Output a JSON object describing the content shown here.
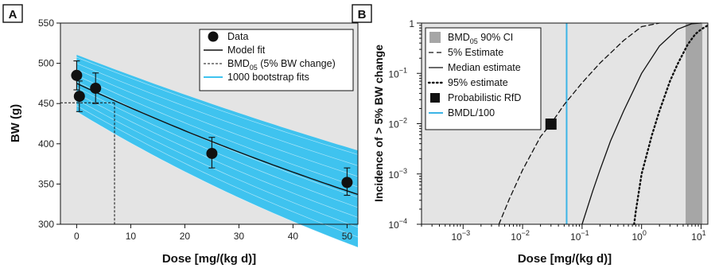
{
  "chart_data": [
    {
      "panel": "A",
      "type": "scatter",
      "xlabel": "Dose [mg/(kg d)]",
      "ylabel": "BW (g)",
      "xlim": [
        -3,
        52
      ],
      "ylim": [
        300,
        550
      ],
      "x_ticks": [
        0,
        10,
        20,
        30,
        40,
        50
      ],
      "y_ticks": [
        300,
        350,
        400,
        450,
        500,
        550
      ],
      "legend_position": "top-right",
      "legend": [
        {
          "label": "Data",
          "marker": "filled-circle"
        },
        {
          "label": "Model fit",
          "style": "solid-black"
        },
        {
          "label": "BMD",
          "sub": "05",
          "suffix": " (5% BW change)",
          "style": "dashed-black"
        },
        {
          "label": "1000 bootstrap fits",
          "style": "solid-cyan"
        }
      ],
      "data_points": [
        {
          "x": 0,
          "y": 485,
          "err_low": 467,
          "err_high": 503
        },
        {
          "x": 0.5,
          "y": 459,
          "err_low": 440,
          "err_high": 478
        },
        {
          "x": 3.5,
          "y": 469,
          "err_low": 450,
          "err_high": 488
        },
        {
          "x": 25,
          "y": 388,
          "err_low": 370,
          "err_high": 408
        },
        {
          "x": 50,
          "y": 352,
          "err_low": 336,
          "err_high": 370
        }
      ],
      "model_fit": {
        "y0": 475,
        "b": 0.0066
      },
      "bootstrap_band": {
        "upper_y0": 510,
        "upper_b": 0.0051,
        "lower_y0": 440,
        "lower_b": 0.0093
      },
      "bmd05": {
        "x": 7,
        "y": 451
      }
    },
    {
      "panel": "B",
      "type": "line",
      "xlabel": "Dose [mg/(kg d)]",
      "ylabel": "Incidence of > 5% BW change",
      "x_scale": "log",
      "y_scale": "log",
      "xlim": [
        0.0002,
        13
      ],
      "ylim": [
        0.0001,
        1
      ],
      "x_ticks": [
        {
          "value": 0.001,
          "base": "10",
          "exp": "−3"
        },
        {
          "value": 0.01,
          "base": "10",
          "exp": "−2"
        },
        {
          "value": 0.1,
          "base": "10",
          "exp": "−1"
        },
        {
          "value": 1,
          "base": "10",
          "exp": "0"
        },
        {
          "value": 10,
          "base": "10",
          "exp": "1"
        }
      ],
      "y_ticks": [
        {
          "value": 0.0001,
          "base": "10",
          "exp": "−4"
        },
        {
          "value": 0.001,
          "base": "10",
          "exp": "−3"
        },
        {
          "value": 0.01,
          "base": "10",
          "exp": "−2"
        },
        {
          "value": 0.1,
          "base": "10",
          "exp": "−1"
        },
        {
          "value": 1,
          "base": "1",
          "exp": ""
        }
      ],
      "legend_position": "top-left",
      "legend": [
        {
          "label": "BMD",
          "sub": "05",
          "suffix": " 90% CI",
          "style": "gray-box"
        },
        {
          "label": "5% Estimate",
          "style": "dashed-black"
        },
        {
          "label": "Median estimate",
          "style": "solid-black"
        },
        {
          "label": "95% estimate",
          "style": "dotted-black"
        },
        {
          "label": "Probabilistic RfD",
          "marker": "filled-square"
        },
        {
          "label": "BMDL/100",
          "style": "solid-cyan"
        }
      ],
      "series": [
        {
          "name": "5% Estimate",
          "style": "dashed",
          "x": [
            0.004,
            0.006,
            0.01,
            0.02,
            0.03,
            0.05,
            0.1,
            0.2,
            0.5,
            1,
            2
          ],
          "y": [
            0.0001,
            0.00032,
            0.0012,
            0.0055,
            0.01,
            0.024,
            0.065,
            0.16,
            0.45,
            0.85,
            1
          ]
        },
        {
          "name": "Median estimate",
          "style": "solid",
          "x": [
            0.1,
            0.15,
            0.2,
            0.3,
            0.5,
            1,
            2,
            4,
            7,
            10
          ],
          "y": [
            0.0001,
            0.00045,
            0.0012,
            0.0045,
            0.018,
            0.1,
            0.35,
            0.75,
            0.97,
            1
          ]
        },
        {
          "name": "95% estimate",
          "style": "dotted",
          "x": [
            0.75,
            0.8,
            1,
            1.5,
            2,
            3,
            4,
            6,
            8,
            10,
            13
          ],
          "y": [
            0.0001,
            0.00018,
            0.001,
            0.006,
            0.018,
            0.07,
            0.15,
            0.38,
            0.6,
            0.75,
            0.9
          ]
        }
      ],
      "bmd05_ci": [
        5.5,
        10.5
      ],
      "probabilistic_rfd": {
        "x": 0.03,
        "y": 0.0098
      },
      "bmdl_100": 0.055
    }
  ],
  "colors": {
    "plot_background": "#e4e4e4",
    "bootstrap_cyan": "#3fc3ef",
    "bmdl_line": "#3bb4e6",
    "ci_band": "#a6a6a6",
    "ink": "#111111"
  }
}
